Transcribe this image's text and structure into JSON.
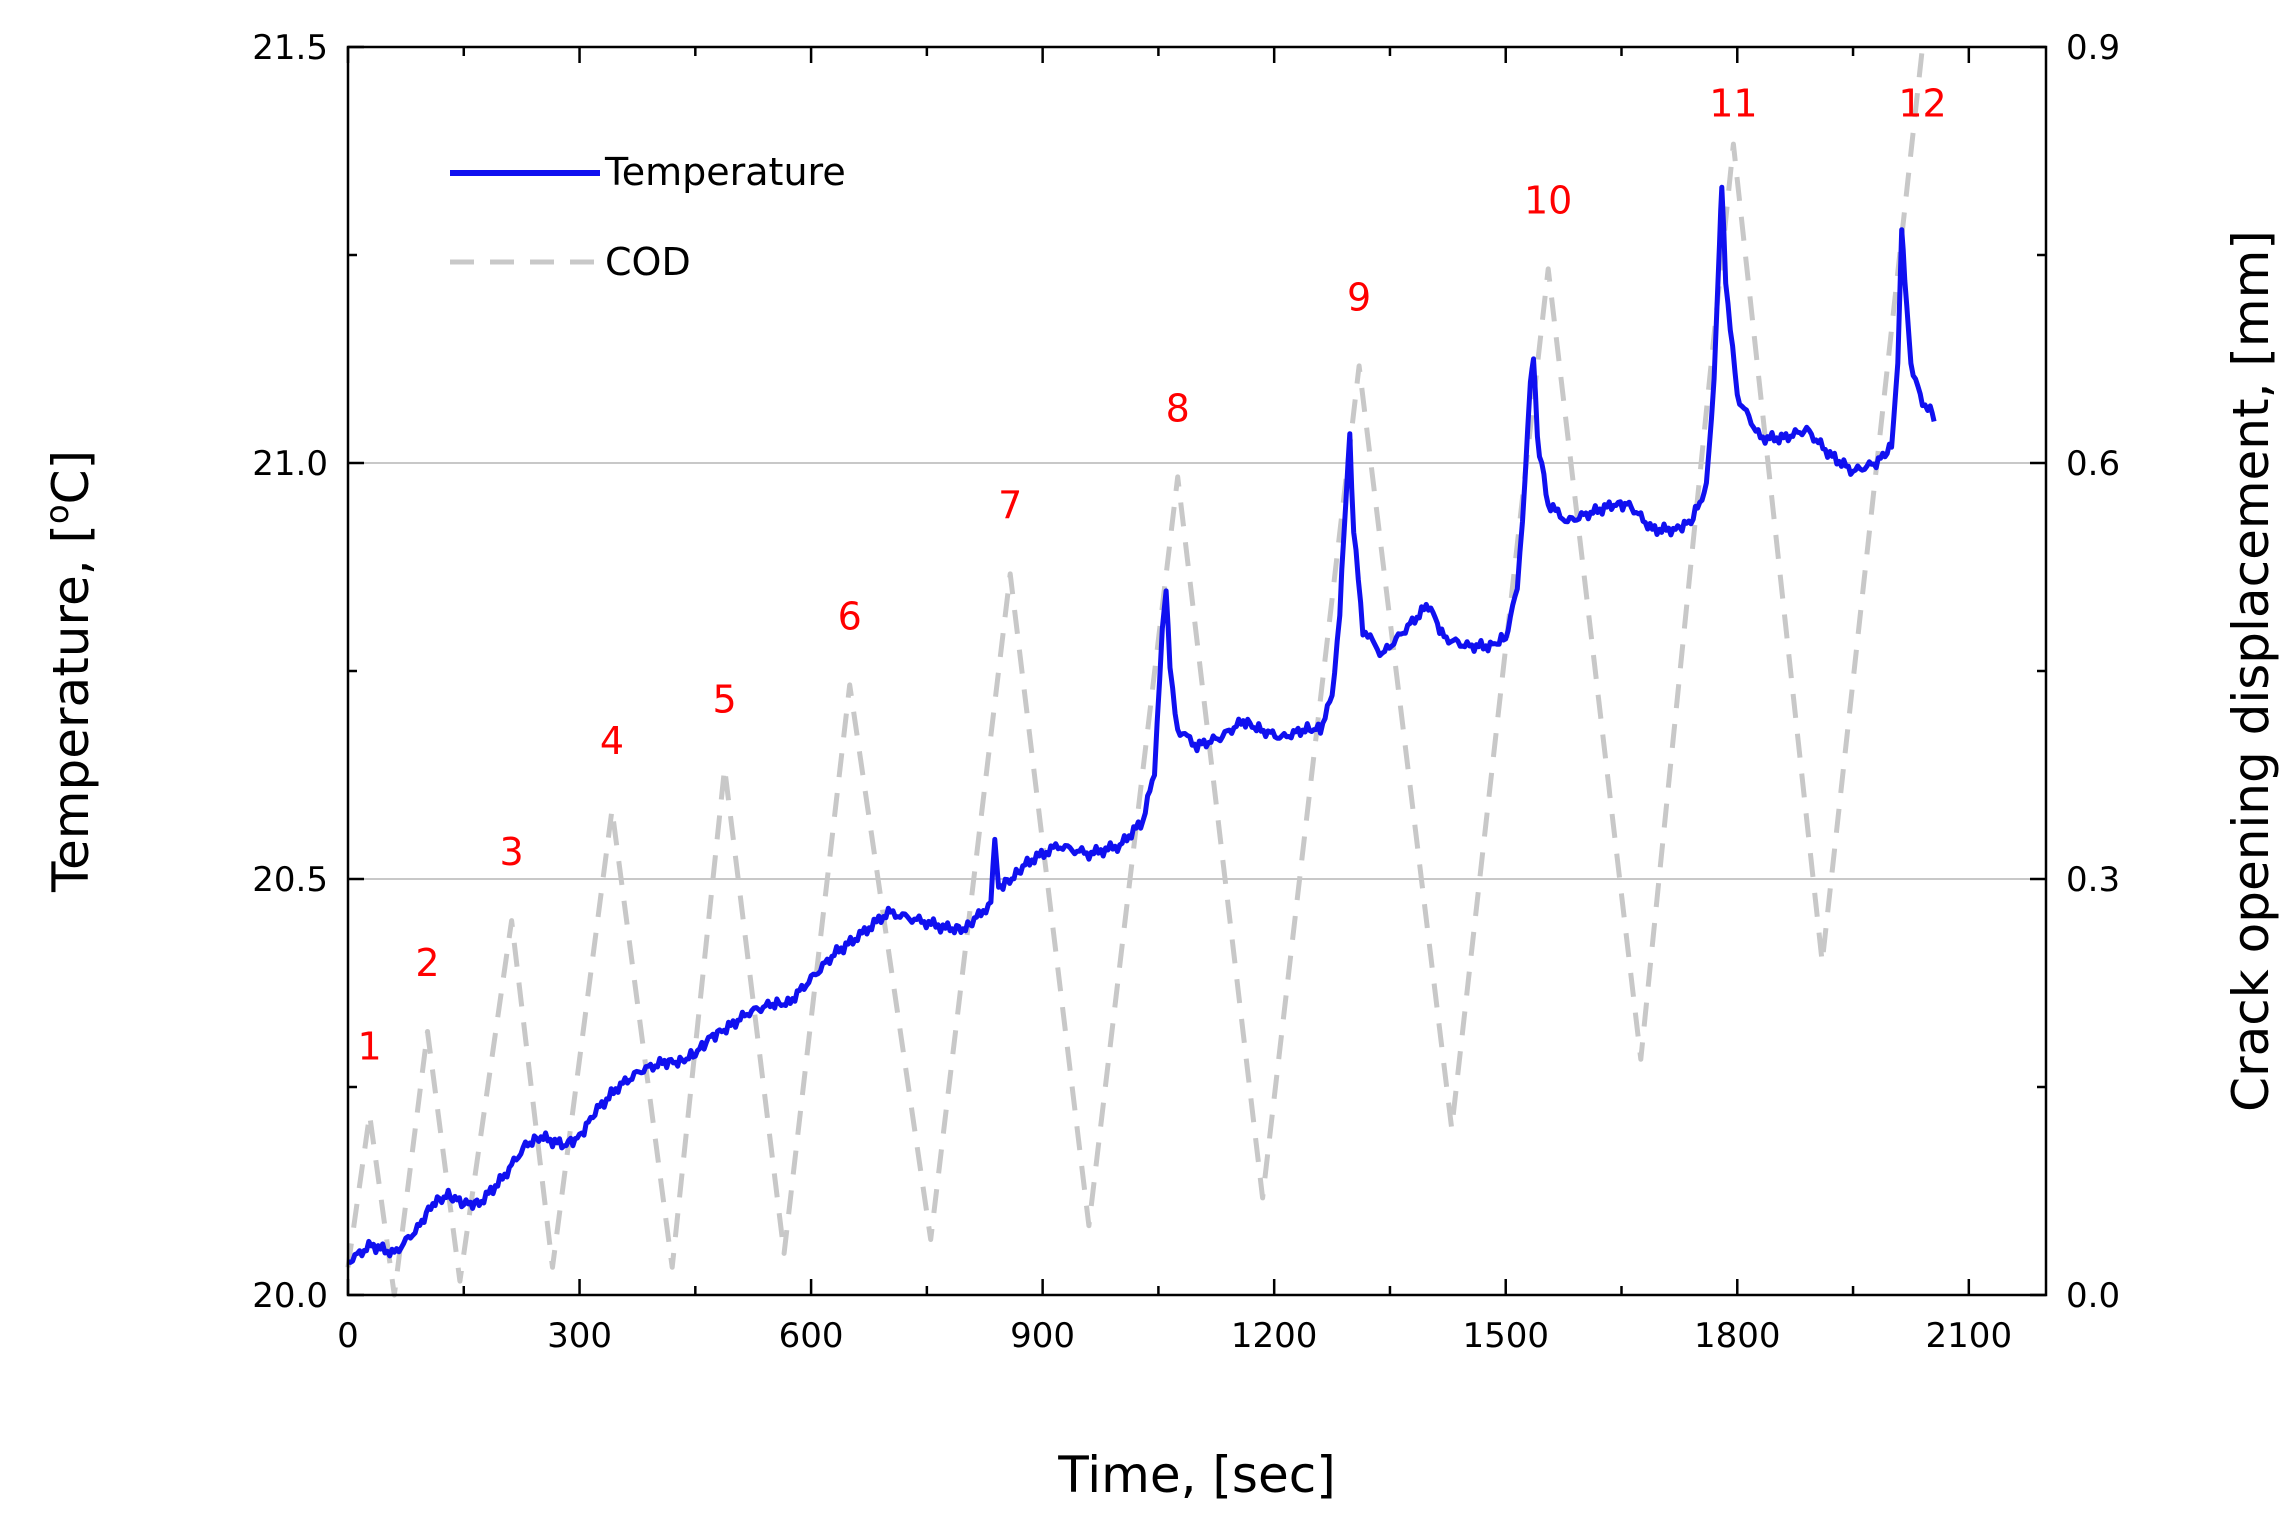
{
  "chart_data": {
    "type": "line",
    "xlabel": "Time, [sec]",
    "ylabel_left": "Temperature, [°C]",
    "ylabel_left_parts": {
      "before": "Temperature, [",
      "sup": "o",
      "after": "C]"
    },
    "ylabel_right": "Crack opening displacement, [mm]",
    "xlim": [
      0,
      2200
    ],
    "ylim_left": [
      20.0,
      21.5
    ],
    "ylim_right": [
      0.0,
      0.9
    ],
    "x_ticks": [
      "0",
      "300",
      "600",
      "900",
      "1200",
      "1500",
      "1800",
      "2100"
    ],
    "x_tick_values": [
      0,
      300,
      600,
      900,
      1200,
      1500,
      1800,
      2100
    ],
    "y_left_ticks": [
      "20.0",
      "20.5",
      "21.0",
      "21.5"
    ],
    "y_left_tick_values": [
      20.0,
      20.5,
      21.0,
      21.5
    ],
    "y_right_ticks": [
      "0.0",
      "0.3",
      "0.6",
      "0.9"
    ],
    "y_right_tick_values": [
      0.0,
      0.3,
      0.6,
      0.9
    ],
    "gridlines_left": [
      20.5,
      21.0
    ],
    "colors": {
      "temperature": "#1010f0",
      "cod": "#c8c8c8",
      "labels": "#ff0000",
      "grid": "#c8c8c8"
    },
    "legend": {
      "position": "top-left",
      "entries": [
        "Temperature",
        "COD"
      ]
    },
    "series": [
      {
        "name": "Temperature",
        "axis": "left",
        "style": "solid",
        "points": [
          [
            0,
            20.04
          ],
          [
            30,
            20.06
          ],
          [
            60,
            20.05
          ],
          [
            90,
            20.08
          ],
          [
            110,
            20.11
          ],
          [
            130,
            20.12
          ],
          [
            150,
            20.11
          ],
          [
            170,
            20.11
          ],
          [
            200,
            20.14
          ],
          [
            230,
            20.18
          ],
          [
            250,
            20.19
          ],
          [
            280,
            20.18
          ],
          [
            300,
            20.19
          ],
          [
            320,
            20.22
          ],
          [
            350,
            20.25
          ],
          [
            380,
            20.27
          ],
          [
            410,
            20.28
          ],
          [
            430,
            20.28
          ],
          [
            450,
            20.29
          ],
          [
            470,
            20.31
          ],
          [
            490,
            20.32
          ],
          [
            520,
            20.34
          ],
          [
            550,
            20.35
          ],
          [
            570,
            20.35
          ],
          [
            600,
            20.38
          ],
          [
            630,
            20.41
          ],
          [
            660,
            20.43
          ],
          [
            700,
            20.46
          ],
          [
            740,
            20.45
          ],
          [
            780,
            20.44
          ],
          [
            800,
            20.44
          ],
          [
            820,
            20.46
          ],
          [
            833,
            20.47
          ],
          [
            838,
            20.55
          ],
          [
            843,
            20.49
          ],
          [
            860,
            20.5
          ],
          [
            880,
            20.52
          ],
          [
            920,
            20.54
          ],
          [
            960,
            20.53
          ],
          [
            1000,
            20.54
          ],
          [
            1030,
            20.57
          ],
          [
            1045,
            20.63
          ],
          [
            1055,
            20.8
          ],
          [
            1060,
            20.85
          ],
          [
            1065,
            20.75
          ],
          [
            1075,
            20.68
          ],
          [
            1100,
            20.66
          ],
          [
            1130,
            20.67
          ],
          [
            1160,
            20.69
          ],
          [
            1180,
            20.68
          ],
          [
            1210,
            20.67
          ],
          [
            1240,
            20.68
          ],
          [
            1260,
            20.68
          ],
          [
            1275,
            20.72
          ],
          [
            1285,
            20.82
          ],
          [
            1293,
            20.96
          ],
          [
            1298,
            21.03
          ],
          [
            1303,
            20.92
          ],
          [
            1315,
            20.8
          ],
          [
            1340,
            20.77
          ],
          [
            1370,
            20.8
          ],
          [
            1400,
            20.83
          ],
          [
            1420,
            20.79
          ],
          [
            1450,
            20.78
          ],
          [
            1480,
            20.78
          ],
          [
            1500,
            20.79
          ],
          [
            1515,
            20.85
          ],
          [
            1525,
            20.98
          ],
          [
            1532,
            21.1
          ],
          [
            1536,
            21.13
          ],
          [
            1541,
            21.03
          ],
          [
            1555,
            20.95
          ],
          [
            1580,
            20.93
          ],
          [
            1610,
            20.94
          ],
          [
            1640,
            20.95
          ],
          [
            1660,
            20.95
          ],
          [
            1690,
            20.92
          ],
          [
            1720,
            20.92
          ],
          [
            1740,
            20.93
          ],
          [
            1760,
            20.97
          ],
          [
            1770,
            21.1
          ],
          [
            1777,
            21.27
          ],
          [
            1780,
            21.33
          ],
          [
            1785,
            21.22
          ],
          [
            1800,
            21.08
          ],
          [
            1830,
            21.03
          ],
          [
            1860,
            21.03
          ],
          [
            1890,
            21.04
          ],
          [
            1920,
            21.01
          ],
          [
            1950,
            20.99
          ],
          [
            1980,
            21.0
          ],
          [
            2000,
            21.02
          ],
          [
            2008,
            21.12
          ],
          [
            2013,
            21.28
          ],
          [
            2017,
            21.22
          ],
          [
            2025,
            21.12
          ],
          [
            2040,
            21.07
          ],
          [
            2050,
            21.07
          ],
          [
            2055,
            21.05
          ]
        ]
      },
      {
        "name": "COD",
        "axis": "right",
        "style": "dashed",
        "points": [
          [
            0,
            0.02
          ],
          [
            28,
            0.13
          ],
          [
            60,
            0.0
          ],
          [
            103,
            0.19
          ],
          [
            145,
            0.01
          ],
          [
            212,
            0.27
          ],
          [
            265,
            0.02
          ],
          [
            342,
            0.35
          ],
          [
            420,
            0.02
          ],
          [
            488,
            0.38
          ],
          [
            565,
            0.03
          ],
          [
            650,
            0.44
          ],
          [
            755,
            0.04
          ],
          [
            858,
            0.52
          ],
          [
            960,
            0.05
          ],
          [
            1075,
            0.59
          ],
          [
            1185,
            0.07
          ],
          [
            1310,
            0.67
          ],
          [
            1430,
            0.12
          ],
          [
            1555,
            0.74
          ],
          [
            1675,
            0.17
          ],
          [
            1795,
            0.83
          ],
          [
            1910,
            0.24
          ],
          [
            2040,
            0.9
          ]
        ]
      }
    ],
    "annotations": [
      {
        "text": "1",
        "x": 28,
        "y": 0.17
      },
      {
        "text": "2",
        "x": 103,
        "y": 0.23
      },
      {
        "text": "3",
        "x": 212,
        "y": 0.31
      },
      {
        "text": "4",
        "x": 342,
        "y": 0.39
      },
      {
        "text": "5",
        "x": 488,
        "y": 0.42
      },
      {
        "text": "6",
        "x": 650,
        "y": 0.48
      },
      {
        "text": "7",
        "x": 858,
        "y": 0.56
      },
      {
        "text": "8",
        "x": 1075,
        "y": 0.63
      },
      {
        "text": "9",
        "x": 1310,
        "y": 0.71
      },
      {
        "text": "10",
        "x": 1555,
        "y": 0.78
      },
      {
        "text": "11",
        "x": 1795,
        "y": 0.85
      },
      {
        "text": "12",
        "x": 2040,
        "y": 0.85
      }
    ]
  }
}
